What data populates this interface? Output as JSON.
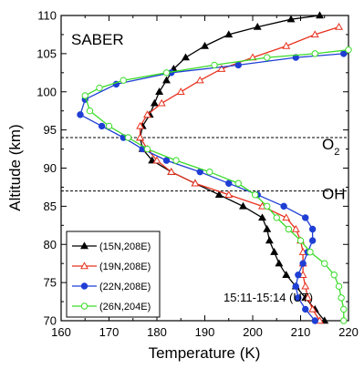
{
  "chart_data": {
    "type": "line",
    "title": "SABER",
    "xlabel": "Temperature (K)",
    "ylabel": "Altitude (km)",
    "xlim": [
      160,
      220
    ],
    "ylim": [
      70,
      110
    ],
    "xticks": [
      160,
      170,
      180,
      190,
      200,
      210,
      220
    ],
    "yticks": [
      70,
      75,
      80,
      85,
      90,
      95,
      100,
      105,
      110
    ],
    "time_label": "15:11-15:14 (UT)",
    "reference_lines": [
      {
        "label": "O",
        "subscript": "2",
        "y": 94
      },
      {
        "label": "OH",
        "subscript": "",
        "y": 87
      }
    ],
    "legend_position": "bottom-left",
    "series": [
      {
        "name": "(15N,208E)",
        "color": "#000000",
        "marker": "triangle-filled",
        "points": [
          [
            215,
            70
          ],
          [
            213,
            71.5
          ],
          [
            211,
            73
          ],
          [
            209,
            74.5
          ],
          [
            207,
            76
          ],
          [
            205.5,
            77.5
          ],
          [
            204.5,
            79
          ],
          [
            203.5,
            80.5
          ],
          [
            203,
            82
          ],
          [
            202,
            83.5
          ],
          [
            198,
            85
          ],
          [
            193,
            86.5
          ],
          [
            188,
            88
          ],
          [
            183,
            89.5
          ],
          [
            179,
            91
          ],
          [
            177,
            92.5
          ],
          [
            176.5,
            94
          ],
          [
            177,
            95.5
          ],
          [
            178.5,
            97
          ],
          [
            179.5,
            98.5
          ],
          [
            180.5,
            100
          ],
          [
            182,
            101.5
          ],
          [
            183.5,
            103
          ],
          [
            186,
            104.5
          ],
          [
            190,
            106
          ],
          [
            195,
            107.5
          ],
          [
            201,
            108.5
          ],
          [
            208,
            109.5
          ],
          [
            214,
            110
          ]
        ]
      },
      {
        "name": "(19N,208E)",
        "color": "#e8321e",
        "marker": "triangle-open",
        "points": [
          [
            214,
            70
          ],
          [
            212.5,
            71.5
          ],
          [
            211.5,
            73
          ],
          [
            211,
            74.5
          ],
          [
            210.5,
            76
          ],
          [
            210.5,
            77.5
          ],
          [
            210.5,
            79
          ],
          [
            210,
            80.5
          ],
          [
            209,
            82
          ],
          [
            207,
            83.5
          ],
          [
            202,
            85
          ],
          [
            195,
            86.5
          ],
          [
            188,
            88
          ],
          [
            183,
            89.5
          ],
          [
            180,
            91
          ],
          [
            178,
            92.5
          ],
          [
            176.5,
            94
          ],
          [
            176.5,
            95.5
          ],
          [
            178,
            97
          ],
          [
            181,
            98.5
          ],
          [
            185,
            100
          ],
          [
            189,
            101.5
          ],
          [
            193.5,
            103
          ],
          [
            200,
            104.5
          ],
          [
            207,
            106
          ],
          [
            213,
            107.5
          ],
          [
            218,
            108.5
          ]
        ]
      },
      {
        "name": "(22N,208E)",
        "color": "#1f3fd4",
        "marker": "circle-filled",
        "points": [
          [
            213,
            70
          ],
          [
            211,
            71.5
          ],
          [
            209.5,
            73
          ],
          [
            209,
            74.5
          ],
          [
            209.5,
            76
          ],
          [
            210.5,
            77.5
          ],
          [
            211.5,
            79
          ],
          [
            212.5,
            80.5
          ],
          [
            212.5,
            82
          ],
          [
            211,
            83.5
          ],
          [
            206.5,
            85
          ],
          [
            201,
            86.5
          ],
          [
            195,
            88
          ],
          [
            189,
            89.5
          ],
          [
            182,
            91
          ],
          [
            177,
            92.5
          ],
          [
            173,
            94
          ],
          [
            168.5,
            95.5
          ],
          [
            164,
            97
          ],
          [
            165,
            99
          ],
          [
            171.5,
            101
          ],
          [
            183,
            102.5
          ],
          [
            197,
            103.5
          ],
          [
            209,
            104.5
          ],
          [
            219,
            105
          ]
        ]
      },
      {
        "name": "(26N,204E)",
        "color": "#3adc28",
        "marker": "circle-open",
        "points": [
          [
            219,
            70
          ],
          [
            219,
            71.5
          ],
          [
            218.5,
            73
          ],
          [
            218,
            74.5
          ],
          [
            217,
            76
          ],
          [
            215,
            77.5
          ],
          [
            212,
            79
          ],
          [
            210,
            80.5
          ],
          [
            207.5,
            82
          ],
          [
            205,
            83.5
          ],
          [
            203,
            85
          ],
          [
            200.5,
            86.5
          ],
          [
            197,
            88
          ],
          [
            191,
            89.5
          ],
          [
            184,
            91
          ],
          [
            178,
            92.5
          ],
          [
            174,
            94
          ],
          [
            170,
            95.5
          ],
          [
            166,
            97.5
          ],
          [
            165,
            99.5
          ],
          [
            168,
            100.5
          ],
          [
            173,
            101.5
          ],
          [
            182,
            102.5
          ],
          [
            192,
            103.5
          ],
          [
            203,
            104.5
          ],
          [
            213,
            105
          ],
          [
            220,
            105.5
          ]
        ]
      }
    ]
  }
}
